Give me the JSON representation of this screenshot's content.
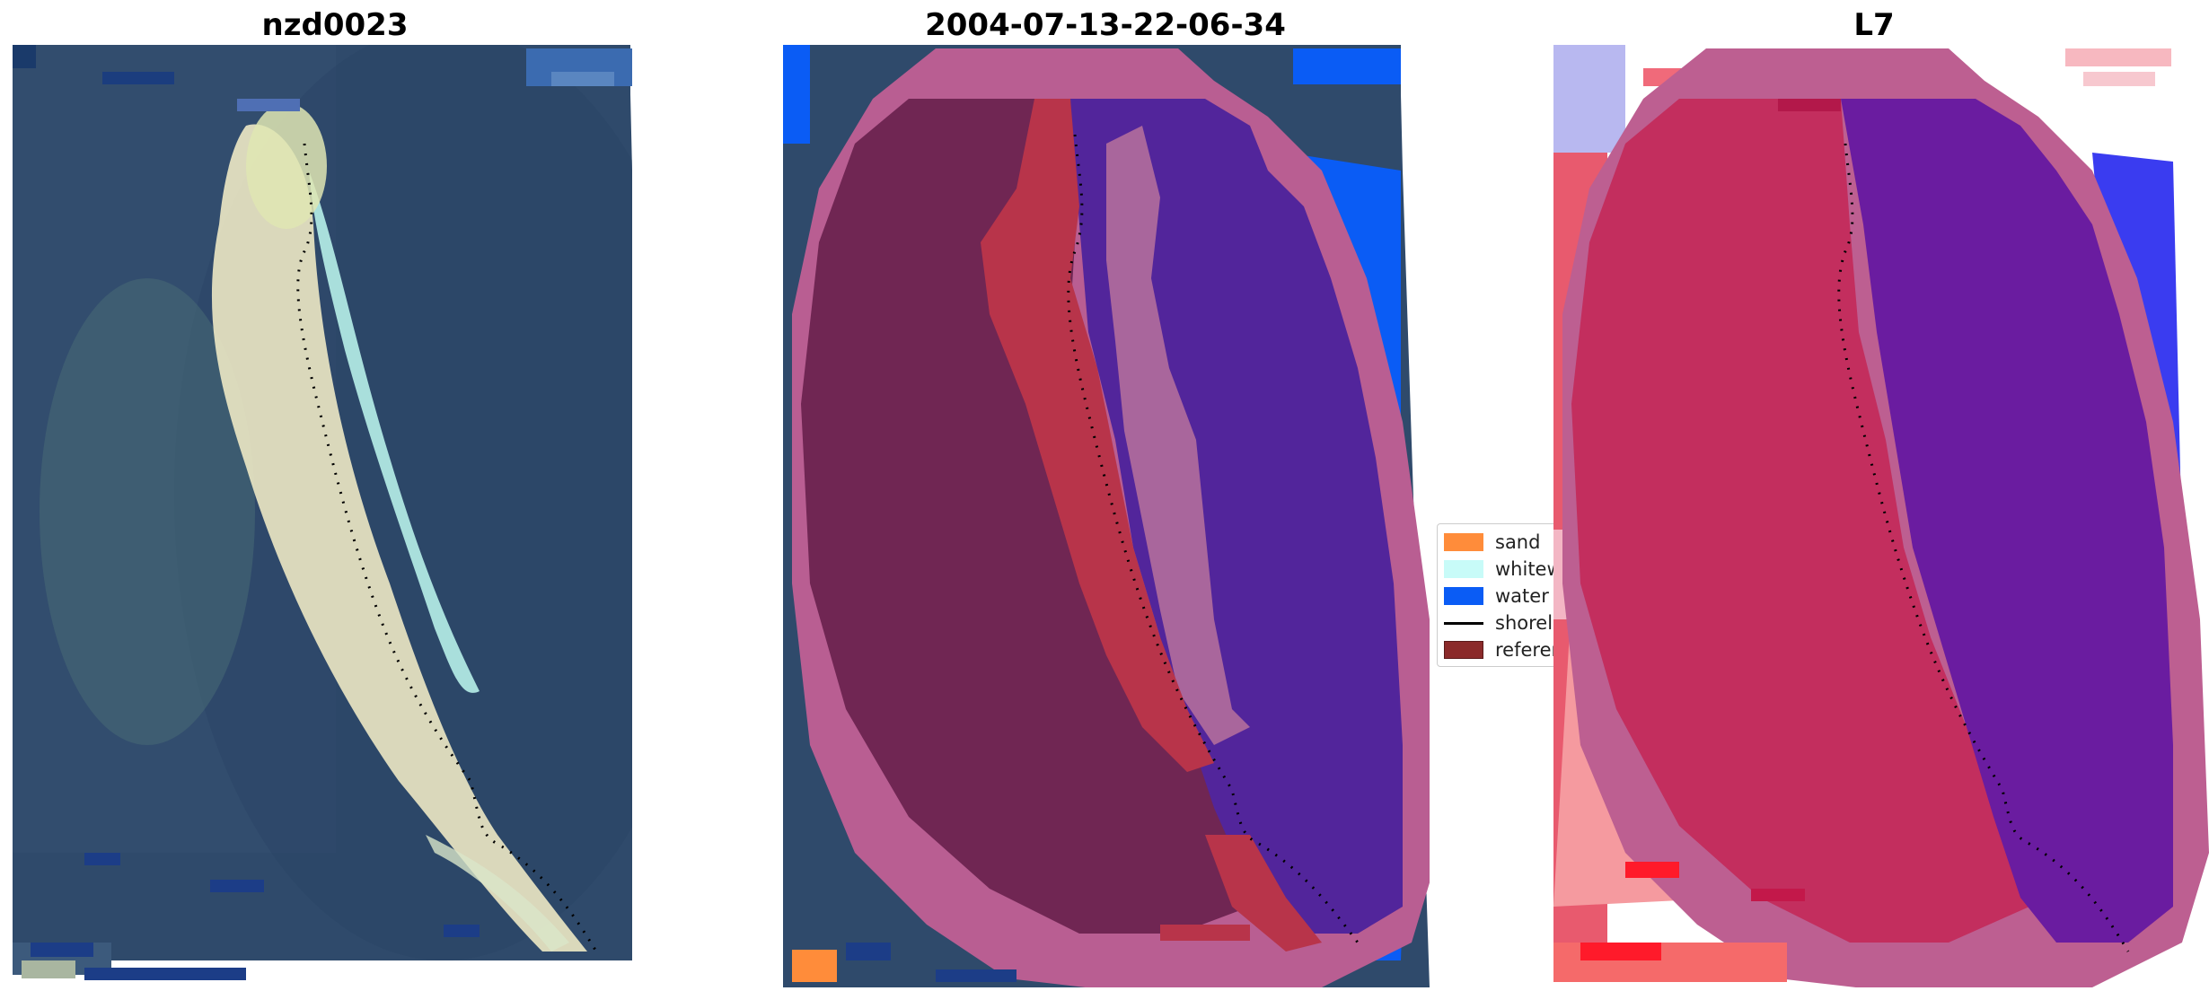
{
  "panels": [
    {
      "title": "nzd0023",
      "kind": "rgb"
    },
    {
      "title": "2004-07-13-22-06-34",
      "kind": "classified"
    },
    {
      "title": "L7",
      "kind": "index"
    }
  ],
  "legend": {
    "items": [
      {
        "label": "sand",
        "color": "#ff8c3a",
        "type": "patch"
      },
      {
        "label": "whitew",
        "color": "#c8fbf8",
        "type": "patch"
      },
      {
        "label": "water",
        "color": "#0a5cf5",
        "type": "patch"
      },
      {
        "label": "shorel",
        "color": "#000000",
        "type": "line"
      },
      {
        "label": "referen",
        "color": "#8b2a2a",
        "type": "patch"
      }
    ]
  },
  "colors": {
    "ocean_blue": "#2e4a6e",
    "beach_pale": "#e8e4c0",
    "whitewater_cyan": "#b9eeea",
    "buffer_pink": "#b9598c",
    "land_maroon": "#6b2350",
    "sand_red": "#b8344a",
    "water_purple": "#51259a",
    "water_blue": "#0a5cf5",
    "index_red": "#c32e5e",
    "index_purple": "#6a1ca0",
    "index_blue": "#3a3cf0"
  }
}
